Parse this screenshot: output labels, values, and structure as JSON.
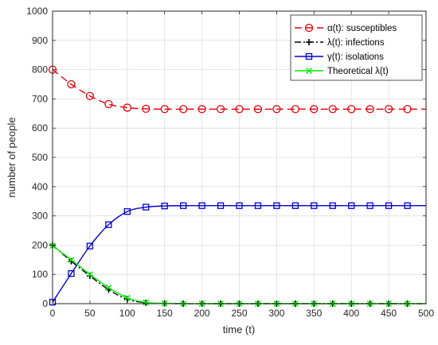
{
  "chart_data": {
    "type": "line",
    "xlabel": "time (t)",
    "ylabel": "number of people",
    "xlim": [
      0,
      500
    ],
    "ylim": [
      0,
      1000
    ],
    "xticks": [
      0,
      50,
      100,
      150,
      200,
      250,
      300,
      350,
      400,
      450,
      500
    ],
    "yticks": [
      0,
      100,
      200,
      300,
      400,
      500,
      600,
      700,
      800,
      900,
      1000
    ],
    "grid": true,
    "legend_position": "top-right",
    "series": [
      {
        "name": "α(t): susceptibles",
        "color": "#e8000b",
        "line_style": "dashed",
        "marker": "circle",
        "x": [
          0,
          25,
          50,
          75,
          100,
          125,
          150,
          175,
          200,
          225,
          250,
          275,
          300,
          325,
          350,
          375,
          400,
          425,
          450,
          475
        ],
        "values": [
          800,
          750,
          710,
          682,
          670,
          666,
          665,
          665,
          665,
          665,
          665,
          665,
          665,
          665,
          665,
          665,
          665,
          665,
          665,
          665
        ]
      },
      {
        "name": "λ(t): infections",
        "color": "#000000",
        "line_style": "dashdot",
        "marker": "plus",
        "x": [
          0,
          25,
          50,
          75,
          100,
          125,
          150,
          175,
          200,
          225,
          250,
          275,
          300,
          325,
          350,
          375,
          400,
          425,
          450,
          475
        ],
        "values": [
          200,
          145,
          95,
          48,
          15,
          3,
          1,
          0,
          0,
          0,
          0,
          0,
          0,
          0,
          0,
          0,
          0,
          0,
          0,
          0
        ]
      },
      {
        "name": "γ(t): isolations",
        "color": "#0000cc",
        "line_style": "solid",
        "marker": "square",
        "x": [
          0,
          25,
          50,
          75,
          100,
          125,
          150,
          175,
          200,
          225,
          250,
          275,
          300,
          325,
          350,
          375,
          400,
          425,
          450,
          475
        ],
        "values": [
          5,
          103,
          197,
          270,
          315,
          330,
          334,
          335,
          335,
          335,
          335,
          335,
          335,
          335,
          335,
          335,
          335,
          335,
          335,
          335
        ]
      },
      {
        "name": "Theoretical λ(t)",
        "color": "#00ee00",
        "line_style": "solid",
        "marker": "x",
        "x": [
          0,
          25,
          50,
          75,
          100,
          125,
          150,
          175,
          200,
          225,
          250,
          275,
          300,
          325,
          350,
          375,
          400,
          425,
          450,
          475
        ],
        "values": [
          198,
          150,
          100,
          55,
          20,
          4,
          1,
          0,
          0,
          0,
          0,
          0,
          0,
          0,
          0,
          0,
          0,
          0,
          0,
          0
        ]
      }
    ]
  }
}
